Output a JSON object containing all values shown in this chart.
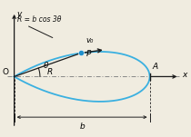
{
  "bg_color": "#f0ece0",
  "curve_color": "#3ab0e0",
  "curve_lw": 1.3,
  "line_color": "#1a1a1a",
  "dot_color": "#2090cc",
  "dot_size": 4.5,
  "b": 1.0,
  "theta_P": 0.34,
  "label_R": "R",
  "label_formula": "R = b cos 3θ",
  "label_theta": "θ",
  "label_v0": "v₀",
  "label_P": "P",
  "label_A": "A",
  "label_O": "O",
  "label_x": "x",
  "label_y": "y",
  "label_b": "b",
  "arrow_color": "#1a1a1a",
  "dim_color": "#222222",
  "dashdot_color": "#888888"
}
